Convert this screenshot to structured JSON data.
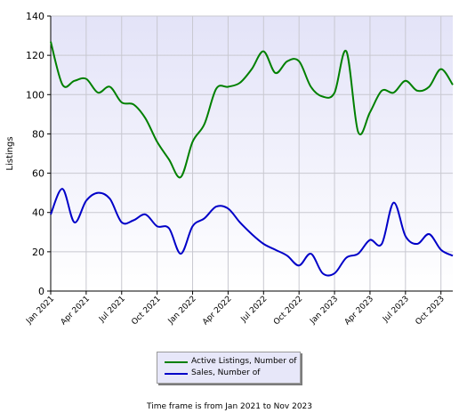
{
  "chart_data": {
    "type": "line",
    "ylabel": "Listings",
    "ylim": [
      0,
      140
    ],
    "yticks": [
      0,
      20,
      40,
      60,
      80,
      100,
      120,
      140
    ],
    "x_start": "Jan 2021",
    "x_end": "Nov 2023",
    "xticks": [
      "Jan 2021",
      "Apr 2021",
      "Jul 2021",
      "Oct 2021",
      "Jan 2022",
      "Apr 2022",
      "Jul 2022",
      "Oct 2022",
      "Jan 2023",
      "Apr 2023",
      "Jul 2023",
      "Oct 2023"
    ],
    "grid": true,
    "legend_position": "bottom-center",
    "series": [
      {
        "name": "Active Listings, Number of",
        "color": "#008000",
        "values": [
          127,
          105,
          107,
          108,
          101,
          104,
          96,
          95,
          88,
          76,
          67,
          58,
          76,
          85,
          103,
          104,
          106,
          113,
          122,
          111,
          117,
          117,
          104,
          99,
          101,
          122,
          81,
          91,
          102,
          101,
          107,
          102,
          104,
          113,
          105
        ]
      },
      {
        "name": "Sales, Number of",
        "color": "#0000c8",
        "values": [
          39,
          52,
          35,
          46,
          50,
          47,
          35,
          36,
          39,
          33,
          32,
          19,
          33,
          37,
          43,
          42,
          35,
          29,
          24,
          21,
          18,
          13,
          19,
          9,
          9,
          17,
          19,
          26,
          24,
          45,
          28,
          24,
          29,
          21,
          18
        ]
      }
    ]
  },
  "caption": "Time frame is from Jan 2021 to Nov 2023"
}
